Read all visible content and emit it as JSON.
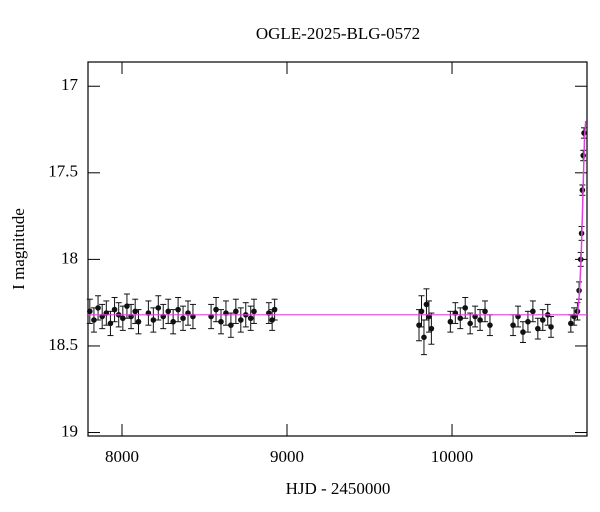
{
  "chart_data": {
    "type": "scatter",
    "title": "OGLE-2025-BLG-0572",
    "xlabel": "HJD - 2450000",
    "ylabel": "I magnitude",
    "x": [
      7805,
      7830,
      7855,
      7880,
      7905,
      7930,
      7955,
      7980,
      8005,
      8030,
      8055,
      8080,
      8100,
      8160,
      8190,
      8220,
      8250,
      8280,
      8310,
      8340,
      8370,
      8400,
      8430,
      8540,
      8570,
      8600,
      8630,
      8660,
      8690,
      8720,
      8750,
      8780,
      8800,
      8890,
      8910,
      8925,
      9800,
      9815,
      9830,
      9845,
      9860,
      9875,
      9990,
      10020,
      10050,
      10080,
      10110,
      10140,
      10170,
      10200,
      10230,
      10370,
      10400,
      10430,
      10460,
      10490,
      10520,
      10550,
      10580,
      10600,
      10720,
      10740,
      10760,
      10770,
      10780,
      10785,
      10790,
      10795,
      10800
    ],
    "values": [
      18.3,
      18.35,
      18.28,
      18.33,
      18.31,
      18.37,
      18.29,
      18.32,
      18.34,
      18.27,
      18.33,
      18.3,
      18.36,
      18.31,
      18.35,
      18.28,
      18.33,
      18.3,
      18.36,
      18.29,
      18.34,
      18.31,
      18.33,
      18.33,
      18.29,
      18.36,
      18.31,
      18.38,
      18.3,
      18.35,
      18.32,
      18.34,
      18.3,
      18.31,
      18.35,
      18.29,
      18.38,
      18.3,
      18.45,
      18.26,
      18.33,
      18.4,
      18.36,
      18.31,
      18.34,
      18.28,
      18.37,
      18.33,
      18.35,
      18.3,
      18.38,
      18.38,
      18.33,
      18.42,
      18.36,
      18.3,
      18.4,
      18.35,
      18.32,
      18.39,
      18.37,
      18.33,
      18.3,
      18.18,
      18.0,
      17.85,
      17.6,
      17.4,
      17.27
    ],
    "errors": [
      0.07,
      0.07,
      0.07,
      0.07,
      0.07,
      0.07,
      0.07,
      0.07,
      0.07,
      0.07,
      0.07,
      0.07,
      0.07,
      0.07,
      0.07,
      0.07,
      0.07,
      0.07,
      0.07,
      0.07,
      0.07,
      0.07,
      0.07,
      0.07,
      0.07,
      0.07,
      0.07,
      0.07,
      0.07,
      0.07,
      0.07,
      0.07,
      0.07,
      0.06,
      0.06,
      0.06,
      0.09,
      0.09,
      0.1,
      0.09,
      0.09,
      0.09,
      0.06,
      0.06,
      0.06,
      0.06,
      0.06,
      0.06,
      0.06,
      0.06,
      0.06,
      0.06,
      0.06,
      0.06,
      0.06,
      0.06,
      0.06,
      0.06,
      0.06,
      0.06,
      0.05,
      0.05,
      0.05,
      0.05,
      0.04,
      0.04,
      0.03,
      0.03,
      0.03
    ],
    "color": "#111111",
    "baseline": 18.32,
    "model": {
      "x": [
        10760,
        10772,
        10782,
        10790,
        10797,
        10803,
        10810
      ],
      "values": [
        18.32,
        18.2,
        18.0,
        17.75,
        17.5,
        17.3,
        17.2
      ],
      "color": "#e040e0"
    },
    "xlim": [
      7794,
      10818
    ],
    "ylim": [
      16.86,
      19.02
    ],
    "y_inverted": true,
    "xticks": [
      8000,
      9000,
      10000
    ],
    "yticks": [
      17,
      17.5,
      18,
      18.5,
      19
    ]
  }
}
